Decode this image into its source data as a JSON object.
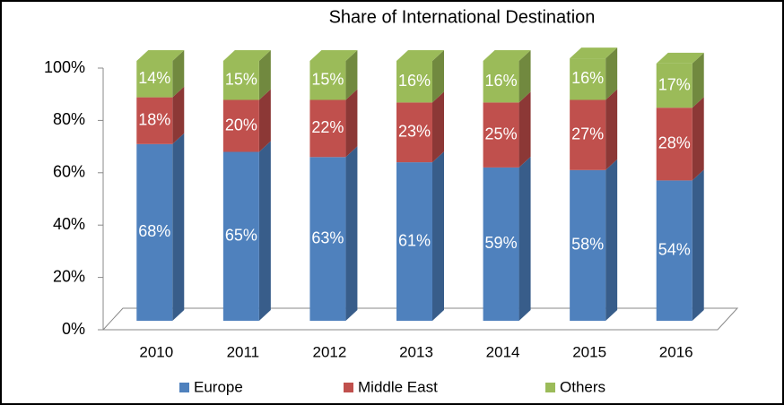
{
  "chart_data": {
    "type": "bar3d_stacked",
    "title": "Share of International Destination",
    "categories": [
      "2010",
      "2011",
      "2012",
      "2013",
      "2014",
      "2015",
      "2016"
    ],
    "series": [
      {
        "name": "Europe",
        "color": "#4f81bd",
        "side_color": "#385d8a",
        "values": [
          68,
          65,
          63,
          61,
          59,
          58,
          54
        ],
        "value_labels": [
          "68%",
          "65%",
          "63%",
          "61%",
          "59%",
          "58%",
          "54%"
        ]
      },
      {
        "name": "Middle East",
        "color": "#c0504d",
        "side_color": "#8c3836",
        "values": [
          18,
          20,
          22,
          23,
          25,
          27,
          28
        ],
        "value_labels": [
          "18%",
          "20%",
          "22%",
          "23%",
          "25%",
          "27%",
          "28%"
        ]
      },
      {
        "name": "Others",
        "color": "#9bbb59",
        "side_color": "#71893f",
        "values": [
          14,
          15,
          15,
          16,
          16,
          16,
          17
        ],
        "value_labels": [
          "14%",
          "15%",
          "15%",
          "16%",
          "16%",
          "16%",
          "17%"
        ]
      }
    ],
    "ylim": [
      0,
      100
    ],
    "yticks": [
      {
        "value": 0,
        "label": "0%"
      },
      {
        "value": 20,
        "label": "20%"
      },
      {
        "value": 40,
        "label": "40%"
      },
      {
        "value": 60,
        "label": "60%"
      },
      {
        "value": 80,
        "label": "80%"
      },
      {
        "value": 100,
        "label": "100%"
      }
    ],
    "legend": "bottom"
  }
}
